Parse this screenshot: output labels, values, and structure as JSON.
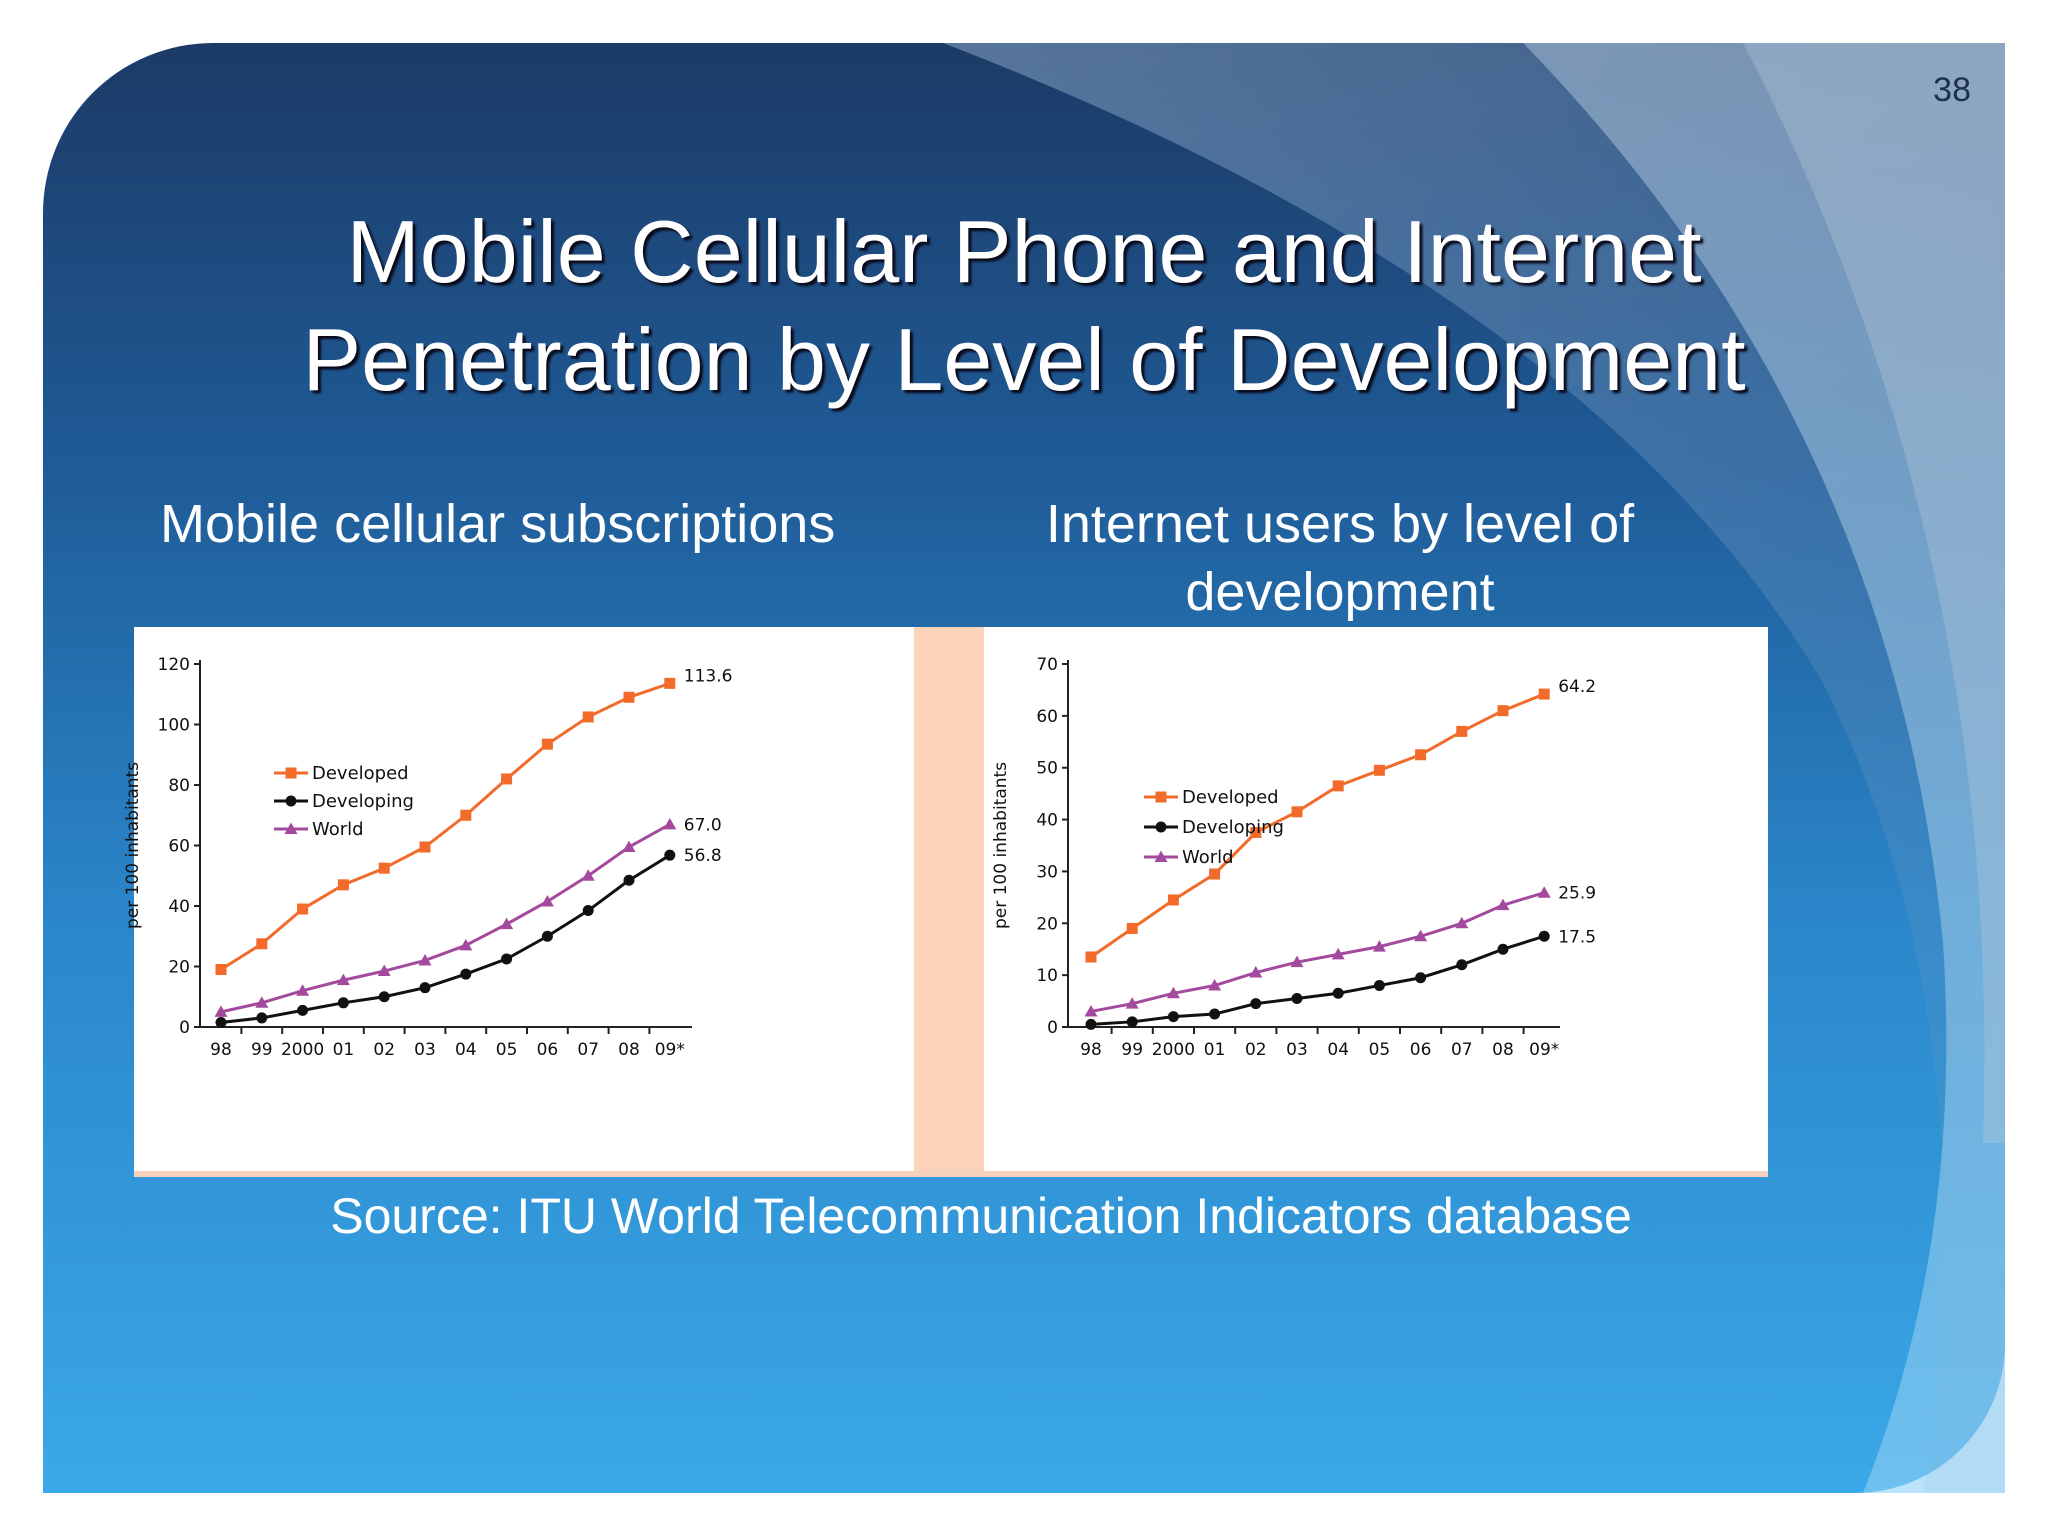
{
  "slide": {
    "page_number": "38",
    "title_line1": "Mobile Cellular Phone and Internet",
    "title_line2": "Penetration by Level of Development",
    "subtitle_left": "Mobile cellular subscriptions",
    "subtitle_right_line1": "Internet users by level of",
    "subtitle_right_line2": "development",
    "source": "Source: ITU World Telecommunication Indicators database"
  },
  "colors": {
    "developed": "#f26b2a",
    "developing": "#111111",
    "world": "#a44a9e"
  },
  "chart_data": [
    {
      "type": "line",
      "id": "mobile",
      "title": "Mobile cellular subscriptions",
      "ylabel": "per 100 inhabitants",
      "xlabel": "",
      "ylim": [
        0,
        120
      ],
      "yticks": [
        0,
        20,
        40,
        60,
        80,
        100,
        120
      ],
      "categories": [
        "98",
        "99",
        "2000",
        "01",
        "02",
        "03",
        "04",
        "05",
        "06",
        "07",
        "08",
        "09*"
      ],
      "legend_position": "top-left",
      "series": [
        {
          "name": "Developed",
          "marker": "square",
          "values": [
            19,
            27.5,
            39,
            47,
            52.5,
            59.5,
            70,
            82,
            93.5,
            102.5,
            109,
            113.6
          ],
          "end_label": "113.6"
        },
        {
          "name": "Developing",
          "marker": "circle",
          "values": [
            1.5,
            3,
            5.5,
            8,
            10,
            13,
            17.5,
            22.5,
            30,
            38.5,
            48.5,
            56.8
          ],
          "end_label": "56.8"
        },
        {
          "name": "World",
          "marker": "triangle",
          "values": [
            5,
            8,
            12,
            15.5,
            18.5,
            22,
            27,
            34,
            41.5,
            50,
            59.5,
            67.0
          ],
          "end_label": "67.0"
        }
      ]
    },
    {
      "type": "line",
      "id": "internet",
      "title": "Internet users by level of development",
      "ylabel": "per 100 inhabitants",
      "xlabel": "",
      "ylim": [
        0,
        70
      ],
      "yticks": [
        0,
        10,
        20,
        30,
        40,
        50,
        60,
        70
      ],
      "categories": [
        "98",
        "99",
        "2000",
        "01",
        "02",
        "03",
        "04",
        "05",
        "06",
        "07",
        "08",
        "09*"
      ],
      "legend_position": "top-left",
      "series": [
        {
          "name": "Developed",
          "marker": "square",
          "values": [
            13.5,
            19,
            24.5,
            29.5,
            37.5,
            41.5,
            46.5,
            49.5,
            52.5,
            57,
            61,
            64.2
          ],
          "end_label": "64.2"
        },
        {
          "name": "Developing",
          "marker": "circle",
          "values": [
            0.5,
            1,
            2,
            2.5,
            4.5,
            5.5,
            6.5,
            8,
            9.5,
            12,
            15,
            17.5
          ],
          "end_label": "17.5"
        },
        {
          "name": "World",
          "marker": "triangle",
          "values": [
            3,
            4.5,
            6.5,
            8,
            10.5,
            12.5,
            14,
            15.5,
            17.5,
            20,
            23.5,
            25.9
          ],
          "end_label": "25.9"
        }
      ]
    }
  ]
}
